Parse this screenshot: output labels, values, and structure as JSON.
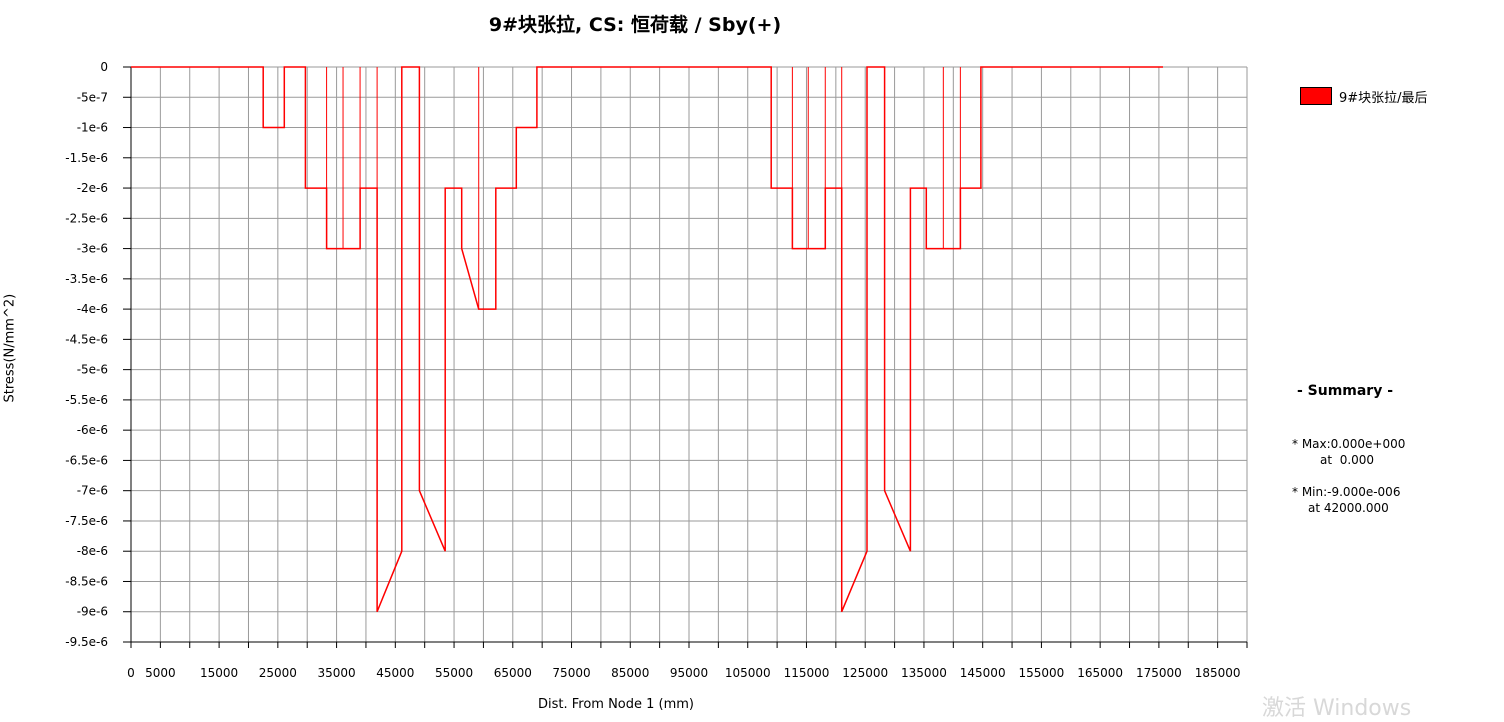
{
  "chart_data": {
    "type": "line",
    "title": "9#块张拉, CS: 恒荷载 / Sby(+)",
    "xlabel": "Dist. From Node 1 (mm)",
    "ylabel": "Stress(N/mm^2)",
    "xlim": [
      0,
      190000
    ],
    "ylim": [
      -9.5e-06,
      0
    ],
    "x_ticks": [
      0,
      5000,
      15000,
      25000,
      35000,
      45000,
      55000,
      65000,
      75000,
      85000,
      95000,
      105000,
      115000,
      125000,
      135000,
      145000,
      155000,
      165000,
      175000,
      185000
    ],
    "x_tick_labels": [
      "0",
      "5000",
      "15000",
      "25000",
      "35000",
      "45000",
      "55000",
      "65000",
      "75000",
      "85000",
      "95000",
      "105000",
      "115000",
      "125000",
      "135000",
      "145000",
      "155000",
      "165000",
      "175000",
      "185000"
    ],
    "y_ticks": [
      0,
      -5e-07,
      -1e-06,
      -1.5e-06,
      -2e-06,
      -2.5e-06,
      -3e-06,
      -3.5e-06,
      -4e-06,
      -4.5e-06,
      -5e-06,
      -5.5e-06,
      -6e-06,
      -6.5e-06,
      -7e-06,
      -7.5e-06,
      -8e-06,
      -8.5e-06,
      -9e-06,
      -9.5e-06
    ],
    "y_tick_labels": [
      "0",
      "-5e-7",
      "-1e-6",
      "-1.5e-6",
      "-2e-6",
      "-2.5e-6",
      "-3e-6",
      "-3.5e-6",
      "-4e-6",
      "-4.5e-6",
      "-5e-6",
      "-5.5e-6",
      "-6e-6",
      "-6.5e-6",
      "-7e-6",
      "-7.5e-6",
      "-8e-6",
      "-8.5e-6",
      "-9e-6",
      "-9.5e-6"
    ],
    "grid": true,
    "legend_position": "top-right",
    "series": [
      {
        "name": "9#块张拉/最后",
        "color": "#ff0000",
        "points": [
          [
            0,
            0
          ],
          [
            22500,
            0
          ],
          [
            22500,
            -1e-06
          ],
          [
            26100,
            -1e-06
          ],
          [
            26100,
            0
          ],
          [
            29700,
            0
          ],
          [
            29700,
            -2e-06
          ],
          [
            33300,
            -2e-06
          ],
          [
            33300,
            -3e-06
          ],
          [
            36100,
            -3e-06
          ],
          [
            36100,
            -3e-06
          ],
          [
            39000,
            -3e-06
          ],
          [
            39000,
            -2e-06
          ],
          [
            41900,
            -2e-06
          ],
          [
            41900,
            -9e-06
          ],
          [
            46100,
            -8e-06
          ],
          [
            46100,
            0
          ],
          [
            49100,
            0
          ],
          [
            49100,
            -7e-06
          ],
          [
            53500,
            -8e-06
          ],
          [
            53500,
            -2e-06
          ],
          [
            56300,
            -2e-06
          ],
          [
            56300,
            -3e-06
          ],
          [
            59200,
            -4e-06
          ],
          [
            62100,
            -4e-06
          ],
          [
            62100,
            -2e-06
          ],
          [
            65600,
            -2e-06
          ],
          [
            65600,
            -1e-06
          ],
          [
            69100,
            -1e-06
          ],
          [
            69100,
            0
          ],
          [
            109000,
            0
          ],
          [
            109000,
            -2e-06
          ],
          [
            112600,
            -2e-06
          ],
          [
            112600,
            -3e-06
          ],
          [
            115300,
            -3e-06
          ],
          [
            118200,
            -3e-06
          ],
          [
            118200,
            -2e-06
          ],
          [
            121000,
            -2e-06
          ],
          [
            121000,
            -9e-06
          ],
          [
            125300,
            -8e-06
          ],
          [
            125300,
            0
          ],
          [
            128300,
            0
          ],
          [
            128300,
            -7e-06
          ],
          [
            132700,
            -8e-06
          ],
          [
            132700,
            -2e-06
          ],
          [
            135400,
            -2e-06
          ],
          [
            135400,
            -3e-06
          ],
          [
            138300,
            -3e-06
          ],
          [
            141200,
            -3e-06
          ],
          [
            141200,
            -2e-06
          ],
          [
            144700,
            -2e-06
          ],
          [
            144700,
            0
          ],
          [
            175700,
            0
          ]
        ],
        "vertical_drops": [
          [
            33300,
            0,
            -3e-06
          ],
          [
            36100,
            0,
            -3e-06
          ],
          [
            39000,
            0,
            -3e-06
          ],
          [
            41900,
            0,
            -9e-06
          ],
          [
            59200,
            0,
            -4e-06
          ],
          [
            112600,
            0,
            -3e-06
          ],
          [
            115300,
            0,
            -3e-06
          ],
          [
            118200,
            0,
            -3e-06
          ],
          [
            121000,
            0,
            -9e-06
          ],
          [
            138300,
            0,
            -3e-06
          ],
          [
            141200,
            0,
            -3e-06
          ]
        ]
      }
    ]
  },
  "summary": {
    "title": "- Summary -",
    "max_label": "* Max:0.000e+000",
    "max_at": "at  0.000",
    "min_label": "* Min:-9.000e-006",
    "min_at": "at 42000.000"
  },
  "watermark": "激活 Windows"
}
